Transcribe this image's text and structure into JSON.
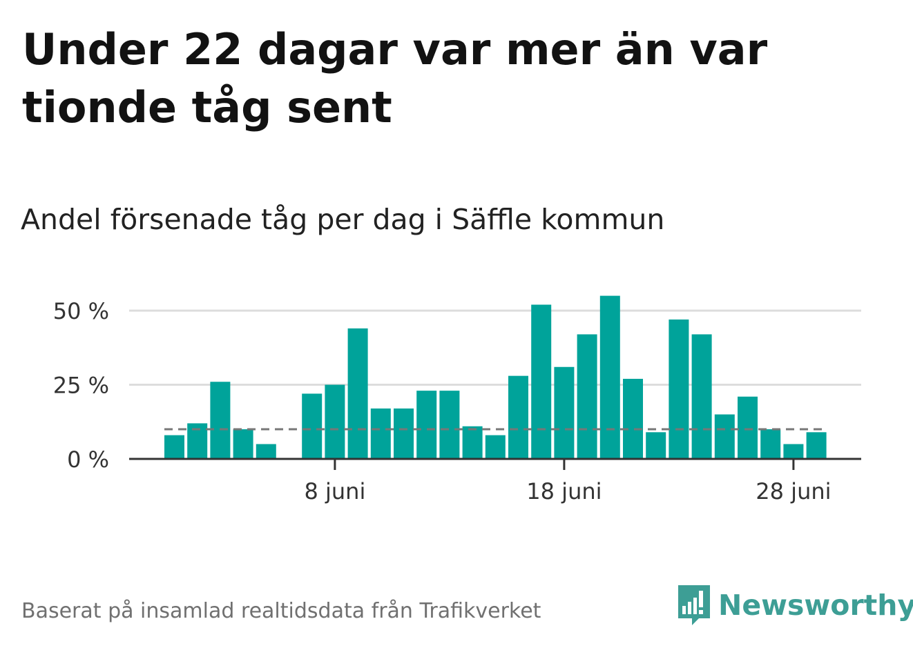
{
  "title": "Under 22 dagar var mer än var tionde tåg sent",
  "subtitle": "Andel försenade tåg per dag i Säffle kommun",
  "source": "Baserat på insamlad realtidsdata från Trafikverket",
  "brand": {
    "name": "Newsworthy",
    "icon": "newsworthy-logo-icon",
    "color": "#3d9e95"
  },
  "colors": {
    "bar": "#00a39a",
    "reference": "#777777",
    "grid": "#dddddd",
    "axis": "#333333"
  },
  "chart_data": {
    "type": "bar",
    "categories": [
      "1 juni",
      "2 juni",
      "3 juni",
      "4 juni",
      "5 juni",
      "6 juni",
      "7 juni",
      "8 juni",
      "9 juni",
      "10 juni",
      "11 juni",
      "12 juni",
      "13 juni",
      "14 juni",
      "15 juni",
      "16 juni",
      "17 juni",
      "18 juni",
      "19 juni",
      "20 juni",
      "21 juni",
      "22 juni",
      "23 juni",
      "24 juni",
      "25 juni",
      "26 juni",
      "27 juni",
      "28 juni",
      "29 juni",
      "30 juni"
    ],
    "values": [
      8,
      12,
      26,
      10,
      5,
      null,
      22,
      25,
      44,
      17,
      17,
      23,
      23,
      11,
      8,
      28,
      52,
      31,
      42,
      55,
      27,
      9,
      47,
      42,
      15,
      21,
      10,
      5,
      9,
      null
    ],
    "reference_line": 10,
    "ylim": [
      0,
      57
    ],
    "yticks": [
      0,
      25,
      50
    ],
    "ytick_labels": [
      "0 %",
      "25 %",
      "50 %"
    ],
    "xticks": [
      "8 juni",
      "18 juni",
      "28 juni"
    ],
    "grid": true
  }
}
